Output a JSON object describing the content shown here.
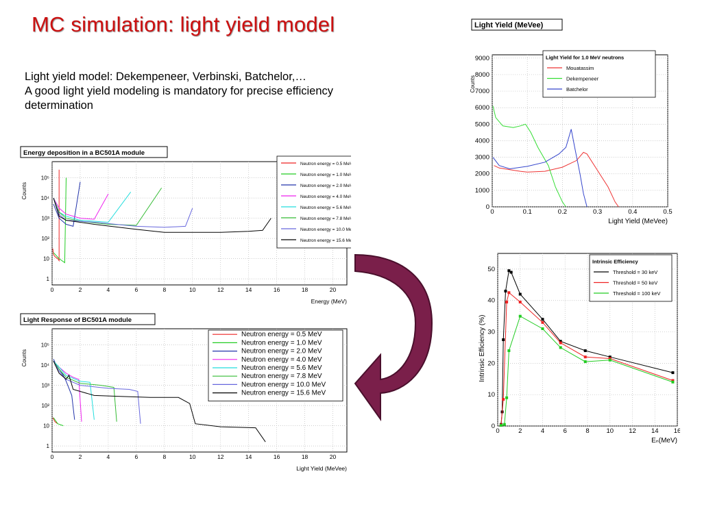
{
  "slide": {
    "title": "MC simulation: light yield model",
    "lines": [
      "Light yield model: Dekempeneer, Verbinski, Batchelor,…",
      "A good light yield modeling is mandatory for precise efficiency",
      "determination"
    ],
    "arrow_color": "#7a1f4a"
  },
  "chart_data": [
    {
      "type": "line",
      "title": "Energy deposition in a BC501A module",
      "xlabel": "Energy (MeV)",
      "ylabel": "Counts",
      "xlim": [
        0,
        21
      ],
      "ylim_log10": [
        -0.3,
        5.8
      ],
      "x_ticks": [
        "0",
        "2",
        "4",
        "6",
        "8",
        "10",
        "12",
        "14",
        "16",
        "18",
        "20"
      ],
      "y_ticks": [
        "1",
        "10",
        "10²",
        "10³",
        "10⁴",
        "10⁵"
      ],
      "grid": true,
      "legend_position": "top-right",
      "series": [
        {
          "name": "Neutron energy =  0.5 MeV",
          "color": "#ee2222",
          "points": [
            [
              0.05,
              1.5
            ],
            [
              0.1,
              1.2
            ],
            [
              0.2,
              1.1
            ],
            [
              0.3,
              1.05
            ],
            [
              0.4,
              1.0
            ],
            [
              0.5,
              0.9
            ],
            [
              0.5,
              5.4
            ]
          ]
        },
        {
          "name": "Neutron energy =  1.0 MeV",
          "color": "#22cc22",
          "points": [
            [
              0.1,
              1.3
            ],
            [
              0.5,
              1.0
            ],
            [
              0.9,
              0.8
            ],
            [
              1.0,
              5.0
            ]
          ]
        },
        {
          "name": "Neutron energy =  2.0 MeV",
          "color": "#2233aa",
          "points": [
            [
              0.1,
              3.7
            ],
            [
              0.5,
              3.0
            ],
            [
              1.0,
              2.7
            ],
            [
              1.5,
              2.6
            ],
            [
              2.0,
              4.8
            ]
          ]
        },
        {
          "name": "Neutron energy =  4.0 MeV",
          "color": "#ee22ee",
          "points": [
            [
              0.1,
              4.0
            ],
            [
              0.5,
              3.5
            ],
            [
              1.0,
              3.2
            ],
            [
              2.0,
              3.0
            ],
            [
              3.0,
              2.95
            ],
            [
              4.0,
              4.2
            ]
          ]
        },
        {
          "name": "Neutron energy =  5.6 MeV",
          "color": "#22dddd",
          "points": [
            [
              0.1,
              4.0
            ],
            [
              0.5,
              3.3
            ],
            [
              1.0,
              3.1
            ],
            [
              2.0,
              2.9
            ],
            [
              4.0,
              2.8
            ],
            [
              5.6,
              4.3
            ]
          ]
        },
        {
          "name": "Neutron energy =  7.8 MeV",
          "color": "#33bb33",
          "points": [
            [
              0.1,
              4.0
            ],
            [
              0.5,
              3.3
            ],
            [
              1.0,
              3.0
            ],
            [
              2.0,
              2.85
            ],
            [
              4.0,
              2.7
            ],
            [
              6.0,
              2.65
            ],
            [
              7.8,
              4.5
            ]
          ]
        },
        {
          "name": "Neutron energy = 10.0 MeV",
          "color": "#6666dd",
          "points": [
            [
              0.1,
              4.0
            ],
            [
              0.5,
              3.2
            ],
            [
              1.0,
              2.9
            ],
            [
              3.0,
              2.8
            ],
            [
              6.0,
              2.6
            ],
            [
              8.0,
              2.55
            ],
            [
              9.5,
              2.6
            ],
            [
              10.0,
              3.5
            ]
          ]
        },
        {
          "name": "Neutron energy = 15.6 MeV",
          "color": "#000000",
          "points": [
            [
              0.1,
              4.0
            ],
            [
              0.5,
              3.1
            ],
            [
              1.0,
              2.9
            ],
            [
              3.0,
              2.7
            ],
            [
              6.0,
              2.45
            ],
            [
              8.0,
              2.3
            ],
            [
              10.0,
              2.3
            ],
            [
              12.0,
              2.3
            ],
            [
              14.0,
              2.35
            ],
            [
              15.0,
              2.4
            ],
            [
              15.6,
              3.0
            ]
          ]
        }
      ]
    },
    {
      "type": "line",
      "title": "Light Response of BC501A module",
      "xlabel": "Light Yield (MeVee)",
      "ylabel": "Counts",
      "xlim": [
        0,
        21
      ],
      "ylim_log10": [
        -0.3,
        5.8
      ],
      "x_ticks": [
        "0",
        "2",
        "4",
        "6",
        "8",
        "10",
        "12",
        "14",
        "16",
        "18",
        "20"
      ],
      "y_ticks": [
        "1",
        "10",
        "10²",
        "10³",
        "10⁴",
        "10⁵"
      ],
      "grid": true,
      "legend_position": "top-right",
      "series": [
        {
          "name": "Neutron energy =  0.5 MeV",
          "color": "#ee2222",
          "points": [
            [
              0.05,
              1.4
            ],
            [
              0.2,
              1.2
            ],
            [
              0.4,
              1.1
            ]
          ]
        },
        {
          "name": "Neutron energy =  1.0 MeV",
          "color": "#22cc22",
          "points": [
            [
              0.1,
              1.4
            ],
            [
              0.4,
              1.1
            ],
            [
              0.8,
              1.0
            ]
          ]
        },
        {
          "name": "Neutron energy =  2.0 MeV",
          "color": "#2233aa",
          "points": [
            [
              0.1,
              4.3
            ],
            [
              0.3,
              4.0
            ],
            [
              0.8,
              3.5
            ],
            [
              1.0,
              3.2
            ],
            [
              1.4,
              2.5
            ],
            [
              1.6,
              1.3
            ]
          ]
        },
        {
          "name": "Neutron energy =  4.0 MeV",
          "color": "#ee22ee",
          "points": [
            [
              0.1,
              4.2
            ],
            [
              0.5,
              3.9
            ],
            [
              1.0,
              3.6
            ],
            [
              1.5,
              3.4
            ],
            [
              1.9,
              3.3
            ],
            [
              2.1,
              1.2
            ]
          ]
        },
        {
          "name": "Neutron energy =  5.6 MeV",
          "color": "#22dddd",
          "points": [
            [
              0.1,
              4.2
            ],
            [
              0.5,
              3.9
            ],
            [
              1.0,
              3.5
            ],
            [
              2.0,
              3.2
            ],
            [
              2.7,
              3.15
            ],
            [
              3.0,
              1.3
            ]
          ]
        },
        {
          "name": "Neutron energy =  7.8 MeV",
          "color": "#33bb33",
          "points": [
            [
              0.1,
              4.2
            ],
            [
              0.5,
              3.8
            ],
            [
              1.0,
              3.4
            ],
            [
              2.0,
              3.1
            ],
            [
              3.5,
              3.0
            ],
            [
              4.4,
              2.9
            ],
            [
              4.6,
              1.2
            ]
          ]
        },
        {
          "name": "Neutron energy = 10.0 MeV",
          "color": "#6666dd",
          "points": [
            [
              0.1,
              4.2
            ],
            [
              0.5,
              3.7
            ],
            [
              1.0,
              3.3
            ],
            [
              2.0,
              3.0
            ],
            [
              4.0,
              2.85
            ],
            [
              5.5,
              2.8
            ],
            [
              6.1,
              2.7
            ],
            [
              6.3,
              1.1
            ]
          ]
        },
        {
          "name": "Neutron energy = 15.6 MeV",
          "color": "#000000",
          "points": [
            [
              0.1,
              4.2
            ],
            [
              0.5,
              3.6
            ],
            [
              1.0,
              3.3
            ],
            [
              1.2,
              3.5
            ],
            [
              1.5,
              2.8
            ],
            [
              3.0,
              2.5
            ],
            [
              5.0,
              2.45
            ],
            [
              7.0,
              2.4
            ],
            [
              9.0,
              2.4
            ],
            [
              9.8,
              2.1
            ],
            [
              10.2,
              1.1
            ],
            [
              12.0,
              0.95
            ],
            [
              14.5,
              0.9
            ],
            [
              15.2,
              0.2
            ]
          ]
        }
      ]
    },
    {
      "type": "line",
      "title": "Light Yield (MeVee)",
      "xlabel": "Light Yield (MeVee)",
      "ylabel": "Counts",
      "xlim": [
        0,
        0.5
      ],
      "ylim": [
        0,
        9200
      ],
      "x_ticks": [
        "0",
        "0.1",
        "0.2",
        "0.3",
        "0.4",
        "0.5"
      ],
      "y_ticks": [
        "0",
        "1000",
        "2000",
        "3000",
        "4000",
        "5000",
        "6000",
        "7000",
        "8000",
        "9000"
      ],
      "grid": true,
      "legend_title": "Light Yield for 1.0 MeV neutrons",
      "legend_position": "top-right",
      "series": [
        {
          "name": "Mouatassim",
          "color": "#ee3333",
          "points": [
            [
              0.005,
              2500
            ],
            [
              0.02,
              2350
            ],
            [
              0.05,
              2250
            ],
            [
              0.08,
              2150
            ],
            [
              0.1,
              2100
            ],
            [
              0.15,
              2150
            ],
            [
              0.2,
              2400
            ],
            [
              0.24,
              2800
            ],
            [
              0.26,
              3300
            ],
            [
              0.27,
              3200
            ],
            [
              0.3,
              2200
            ],
            [
              0.33,
              1200
            ],
            [
              0.35,
              300
            ],
            [
              0.36,
              0
            ]
          ]
        },
        {
          "name": "Dekempeneer",
          "color": "#33dd33",
          "points": [
            [
              0.002,
              6100
            ],
            [
              0.01,
              5400
            ],
            [
              0.03,
              4900
            ],
            [
              0.06,
              4800
            ],
            [
              0.08,
              4900
            ],
            [
              0.095,
              5000
            ],
            [
              0.11,
              4500
            ],
            [
              0.13,
              3600
            ],
            [
              0.16,
              2500
            ],
            [
              0.18,
              1200
            ],
            [
              0.2,
              300
            ],
            [
              0.21,
              0
            ]
          ]
        },
        {
          "name": "Batchelor",
          "color": "#3344cc",
          "points": [
            [
              0.002,
              3000
            ],
            [
              0.02,
              2500
            ],
            [
              0.05,
              2300
            ],
            [
              0.1,
              2450
            ],
            [
              0.15,
              2700
            ],
            [
              0.19,
              3200
            ],
            [
              0.21,
              3600
            ],
            [
              0.225,
              4700
            ],
            [
              0.235,
              3600
            ],
            [
              0.25,
              2000
            ],
            [
              0.26,
              800
            ],
            [
              0.27,
              0
            ]
          ]
        }
      ]
    },
    {
      "type": "line",
      "title": "",
      "xlabel": "Eₙ(MeV)",
      "ylabel": "Intrinsic Efficiency (%)",
      "xlim": [
        0,
        16
      ],
      "ylim": [
        0,
        55
      ],
      "x_ticks": [
        "0",
        "2",
        "4",
        "6",
        "8",
        "10",
        "12",
        "14",
        "16"
      ],
      "y_ticks": [
        "0",
        "10",
        "20",
        "30",
        "40",
        "50"
      ],
      "grid": true,
      "legend_title": "Intrinsic Efficiency",
      "legend_position": "top-right",
      "series": [
        {
          "name": "Threshold = 30 keV",
          "color": "#000000",
          "points": [
            [
              0.3,
              0.5
            ],
            [
              0.4,
              4.5
            ],
            [
              0.5,
              27.5
            ],
            [
              0.7,
              43
            ],
            [
              1.0,
              49.5
            ],
            [
              1.2,
              49
            ],
            [
              2.0,
              42
            ],
            [
              4.0,
              34
            ],
            [
              5.6,
              27
            ],
            [
              7.8,
              24
            ],
            [
              10.0,
              22
            ],
            [
              15.6,
              17
            ]
          ]
        },
        {
          "name": "Threshold = 50 keV",
          "color": "#ee2222",
          "points": [
            [
              0.3,
              0.3
            ],
            [
              0.5,
              8.5
            ],
            [
              0.8,
              39.5
            ],
            [
              1.0,
              42.5
            ],
            [
              2.0,
              39.5
            ],
            [
              4.0,
              33
            ],
            [
              5.6,
              26.5
            ],
            [
              7.8,
              22
            ],
            [
              10.0,
              21.5
            ],
            [
              15.6,
              14.5
            ]
          ]
        },
        {
          "name": "Threshold = 100 keV",
          "color": "#22cc22",
          "points": [
            [
              0.3,
              0.2
            ],
            [
              0.6,
              0.5
            ],
            [
              0.8,
              9
            ],
            [
              1.0,
              24
            ],
            [
              2.0,
              35
            ],
            [
              4.0,
              31
            ],
            [
              5.6,
              25
            ],
            [
              7.8,
              20.5
            ],
            [
              10.0,
              21
            ],
            [
              15.6,
              14
            ]
          ]
        }
      ]
    }
  ]
}
